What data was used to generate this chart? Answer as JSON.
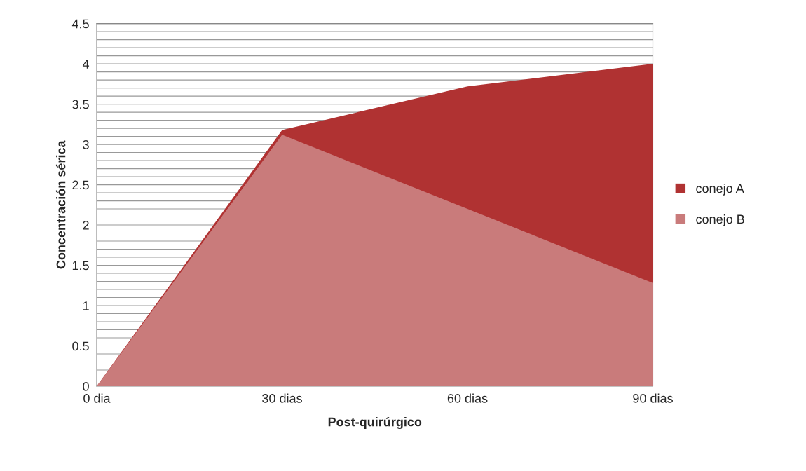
{
  "chart_data": {
    "type": "area",
    "xlabel": "Post-quirúrgico",
    "ylabel": "Concentración sérica",
    "categories": [
      "0 dia",
      "30 dias",
      "60 dias",
      "90 dias"
    ],
    "series": [
      {
        "name": "conejo A",
        "color": "#b03232",
        "values": [
          0,
          3.18,
          3.72,
          4.0
        ]
      },
      {
        "name": "conejo B",
        "color": "#c97b7b",
        "values": [
          0,
          3.12,
          2.2,
          1.28
        ]
      }
    ],
    "ylim": [
      0,
      4.5
    ],
    "yticks": [
      0,
      {
        "value": 0.1,
        "label": null
      },
      {
        "value": 0.2,
        "label": null
      },
      {
        "value": 0.3,
        "label": null
      },
      {
        "value": 0.4,
        "label": null
      },
      0.5,
      {
        "value": 0.6,
        "label": null
      },
      {
        "value": 0.7,
        "label": null
      },
      {
        "value": 0.8,
        "label": null
      },
      {
        "value": 0.9,
        "label": null
      },
      1,
      {
        "value": 1.1,
        "label": null
      },
      {
        "value": 1.2,
        "label": null
      },
      {
        "value": 1.3,
        "label": null
      },
      {
        "value": 1.4,
        "label": null
      },
      1.5,
      {
        "value": 1.6,
        "label": null
      },
      {
        "value": 1.7,
        "label": null
      },
      {
        "value": 1.8,
        "label": null
      },
      {
        "value": 1.9,
        "label": null
      },
      2,
      {
        "value": 2.1,
        "label": null
      },
      {
        "value": 2.2,
        "label": null
      },
      {
        "value": 2.3,
        "label": null
      },
      {
        "value": 2.4,
        "label": null
      },
      2.5,
      {
        "value": 2.6,
        "label": null
      },
      {
        "value": 2.7,
        "label": null
      },
      {
        "value": 2.8,
        "label": null
      },
      {
        "value": 2.9,
        "label": null
      },
      3,
      {
        "value": 3.1,
        "label": null
      },
      {
        "value": 3.2,
        "label": null
      },
      {
        "value": 3.3,
        "label": null
      },
      {
        "value": 3.4,
        "label": null
      },
      3.5,
      {
        "value": 3.6,
        "label": null
      },
      {
        "value": 3.7,
        "label": null
      },
      {
        "value": 3.8,
        "label": null
      },
      {
        "value": 3.9,
        "label": null
      },
      4,
      {
        "value": 4.1,
        "label": null
      },
      {
        "value": 4.2,
        "label": null
      },
      {
        "value": 4.3,
        "label": null
      },
      {
        "value": 4.4,
        "label": null
      },
      4.5
    ],
    "grid": "y",
    "legend": "right"
  }
}
